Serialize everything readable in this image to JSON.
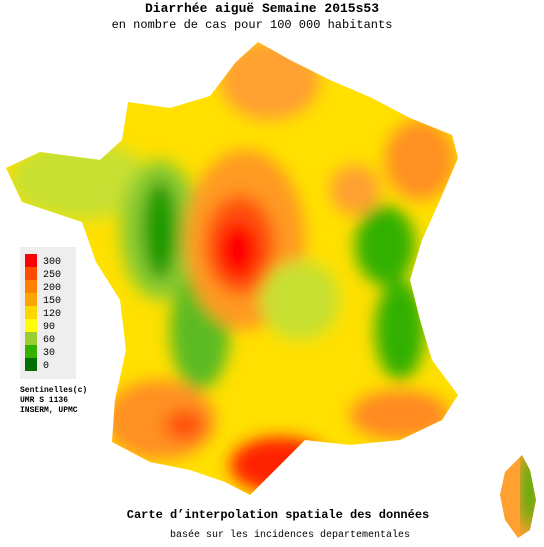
{
  "header": {
    "title": "Diarrhée aiguë Semaine 2015s53",
    "subtitle": "en nombre de cas pour 100 000 habitants"
  },
  "legend": {
    "items": [
      {
        "value": 300,
        "color": "#ff0000"
      },
      {
        "value": 250,
        "color": "#ff4a00"
      },
      {
        "value": 200,
        "color": "#ff8000"
      },
      {
        "value": 150,
        "color": "#ffa500"
      },
      {
        "value": 120,
        "color": "#ffd700"
      },
      {
        "value": 90,
        "color": "#ffff00"
      },
      {
        "value": 60,
        "color": "#9acd32"
      },
      {
        "value": 30,
        "color": "#33b000"
      },
      {
        "value": 0,
        "color": "#007000"
      }
    ]
  },
  "credits": [
    "Sentinelles(c)",
    "UMR S 1136",
    "INSERM, UPMC"
  ],
  "footer": {
    "title": "Carte d’interpolation spatiale des données",
    "subtitle": "basée sur les incidences departementales"
  }
}
